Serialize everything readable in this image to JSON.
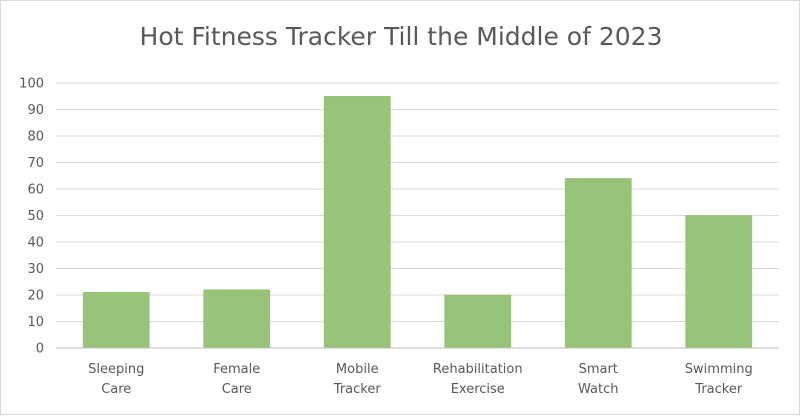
{
  "chart_data": {
    "type": "bar",
    "title": "Hot Fitness Tracker Till the Middle of 2023",
    "categories": [
      [
        "Sleeping",
        "Care"
      ],
      [
        "Female",
        "Care"
      ],
      [
        "Mobile",
        "Tracker"
      ],
      [
        "Rehabilitation",
        "Exercise"
      ],
      [
        "Smart",
        "Watch"
      ],
      [
        "Swimming",
        "Tracker"
      ]
    ],
    "values": [
      21,
      22,
      95,
      20,
      64,
      50
    ],
    "ylim": [
      0,
      100
    ],
    "yticks": [
      "0",
      "10",
      "20",
      "30",
      "40",
      "50",
      "60",
      "70",
      "80",
      "90",
      "100"
    ],
    "grid": true,
    "legend": "none",
    "colors": {
      "bar": "#98c47a",
      "bar_edge": "#8fbc70",
      "grid": "#d9d9d9",
      "axis": "#bfbfbf",
      "text": "#595959"
    }
  }
}
